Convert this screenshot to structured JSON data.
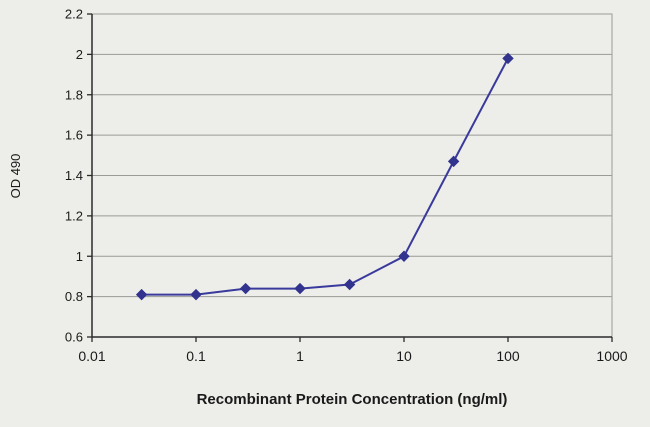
{
  "chart_data": {
    "type": "line",
    "title": "",
    "xlabel": "Recombinant Protein Concentration (ng/ml)",
    "ylabel": "OD 490",
    "x_scale": "log",
    "x": [
      0.03,
      0.1,
      0.3,
      1,
      3,
      10,
      30,
      100
    ],
    "y": [
      0.81,
      0.81,
      0.84,
      0.84,
      0.86,
      1.0,
      1.47,
      1.98
    ],
    "xlim": [
      0.01,
      1000
    ],
    "ylim": [
      0.6,
      2.2
    ],
    "x_ticks": [
      0.01,
      0.1,
      1,
      10,
      100,
      1000
    ],
    "x_tick_labels": [
      "0.01",
      "0.1",
      "1",
      "10",
      "100",
      "1000"
    ],
    "y_ticks": [
      0.6,
      0.8,
      1,
      1.2,
      1.4,
      1.6,
      1.8,
      2,
      2.2
    ],
    "y_tick_labels": [
      "0.6",
      "0.8",
      "1",
      "1.2",
      "1.4",
      "1.6",
      "1.8",
      "2",
      "2.2"
    ],
    "grid": "horizontal",
    "legend": null,
    "marker": "diamond",
    "colors": {
      "line": "#3a3a9d",
      "marker": "#32328f",
      "grid": "#9a9a96",
      "axis": "#2a2a2a",
      "plot_border": "#9a9a96",
      "background": "#edeee9",
      "text": "#1a1a1a"
    }
  }
}
